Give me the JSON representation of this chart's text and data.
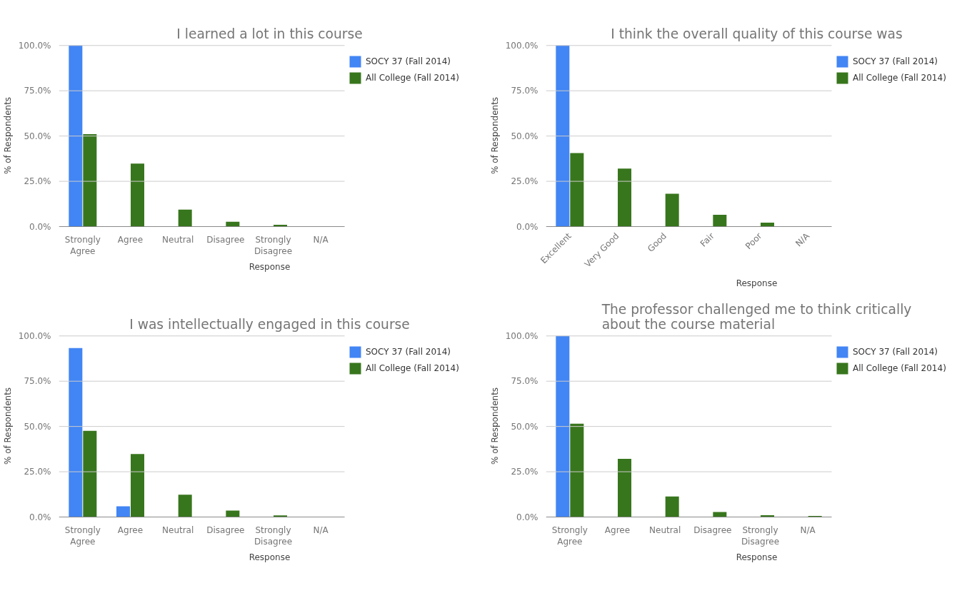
{
  "chart_data": [
    {
      "type": "bar",
      "title": "I learned a lot in this course",
      "xlabel": "Response",
      "ylabel": "% of Respondents",
      "categories": [
        "Strongly Agree",
        "Agree",
        "Neutral",
        "Disagree",
        "Strongly Disagree",
        "N/A"
      ],
      "series": [
        {
          "name": "SOCY 37 (Fall 2014)",
          "color": "#4285f4",
          "values": [
            100,
            0,
            0,
            0,
            0,
            0
          ]
        },
        {
          "name": "All College (Fall 2014)",
          "color": "#38761d",
          "values": [
            51,
            34.8,
            9.4,
            2.7,
            1.0,
            0
          ]
        }
      ],
      "ylim": [
        0,
        100
      ],
      "yticks": [
        {
          "value": 0,
          "label": "0.0%"
        },
        {
          "value": 25,
          "label": "25.0%"
        },
        {
          "value": 50,
          "label": "50.0%"
        },
        {
          "value": 75,
          "label": "75.0%"
        },
        {
          "value": 100,
          "label": "100.0%"
        }
      ],
      "grid": "y",
      "legend": "top right"
    },
    {
      "type": "bar",
      "title": "I think the overall quality of this course was",
      "xlabel": "Response",
      "ylabel": "% of Respondents",
      "categories": [
        "Excellent",
        "Very Good",
        "Good",
        "Fair",
        "Poor",
        "N/A"
      ],
      "series": [
        {
          "name": "SOCY 37 (Fall 2014)",
          "color": "#4285f4",
          "values": [
            100,
            0,
            0,
            0,
            0,
            0
          ]
        },
        {
          "name": "All College (Fall 2014)",
          "color": "#38761d",
          "values": [
            40.6,
            32.0,
            18.1,
            6.5,
            2.2,
            0
          ]
        }
      ],
      "ylim": [
        0,
        100
      ],
      "yticks": [
        {
          "value": 0,
          "label": "0.0%"
        },
        {
          "value": 25,
          "label": "25.0%"
        },
        {
          "value": 50,
          "label": "50.0%"
        },
        {
          "value": 75,
          "label": "75.0%"
        },
        {
          "value": 100,
          "label": "100.0%"
        }
      ],
      "grid": "y",
      "legend": "top right"
    },
    {
      "type": "bar",
      "title": "I was intellectually engaged in this course",
      "xlabel": "Response",
      "ylabel": "% of Respondents",
      "categories": [
        "Strongly Agree",
        "Agree",
        "Neutral",
        "Disagree",
        "Strongly Disagree",
        "N/A"
      ],
      "series": [
        {
          "name": "SOCY 37 (Fall 2014)",
          "color": "#4285f4",
          "values": [
            93.3,
            5.9,
            0,
            0,
            0,
            0
          ]
        },
        {
          "name": "All College (Fall 2014)",
          "color": "#38761d",
          "values": [
            47.6,
            34.8,
            12.3,
            3.5,
            0.9,
            0
          ]
        }
      ],
      "ylim": [
        0,
        100
      ],
      "yticks": [
        {
          "value": 0,
          "label": "0.0%"
        },
        {
          "value": 25,
          "label": "25.0%"
        },
        {
          "value": 50,
          "label": "50.0%"
        },
        {
          "value": 75,
          "label": "75.0%"
        },
        {
          "value": 100,
          "label": "100.0%"
        }
      ],
      "grid": "y",
      "legend": "top right"
    },
    {
      "type": "bar",
      "title": "The professor challenged me to think critically about the course material",
      "xlabel": "Response",
      "ylabel": "% of Respondents",
      "categories": [
        "Strongly Agree",
        "Agree",
        "Neutral",
        "Disagree",
        "Strongly Disagree",
        "N/A"
      ],
      "series": [
        {
          "name": "SOCY 37 (Fall 2014)",
          "color": "#4285f4",
          "values": [
            100,
            0,
            0,
            0,
            0,
            0
          ]
        },
        {
          "name": "All College (Fall 2014)",
          "color": "#38761d",
          "values": [
            51.5,
            32.1,
            11.3,
            2.8,
            1.0,
            0.6
          ]
        }
      ],
      "ylim": [
        0,
        100
      ],
      "yticks": [
        {
          "value": 0,
          "label": "0.0%"
        },
        {
          "value": 25,
          "label": "25.0%"
        },
        {
          "value": 50,
          "label": "50.0%"
        },
        {
          "value": 75,
          "label": "75.0%"
        },
        {
          "value": 100,
          "label": "100.0%"
        }
      ],
      "grid": "y",
      "legend": "top right"
    }
  ]
}
